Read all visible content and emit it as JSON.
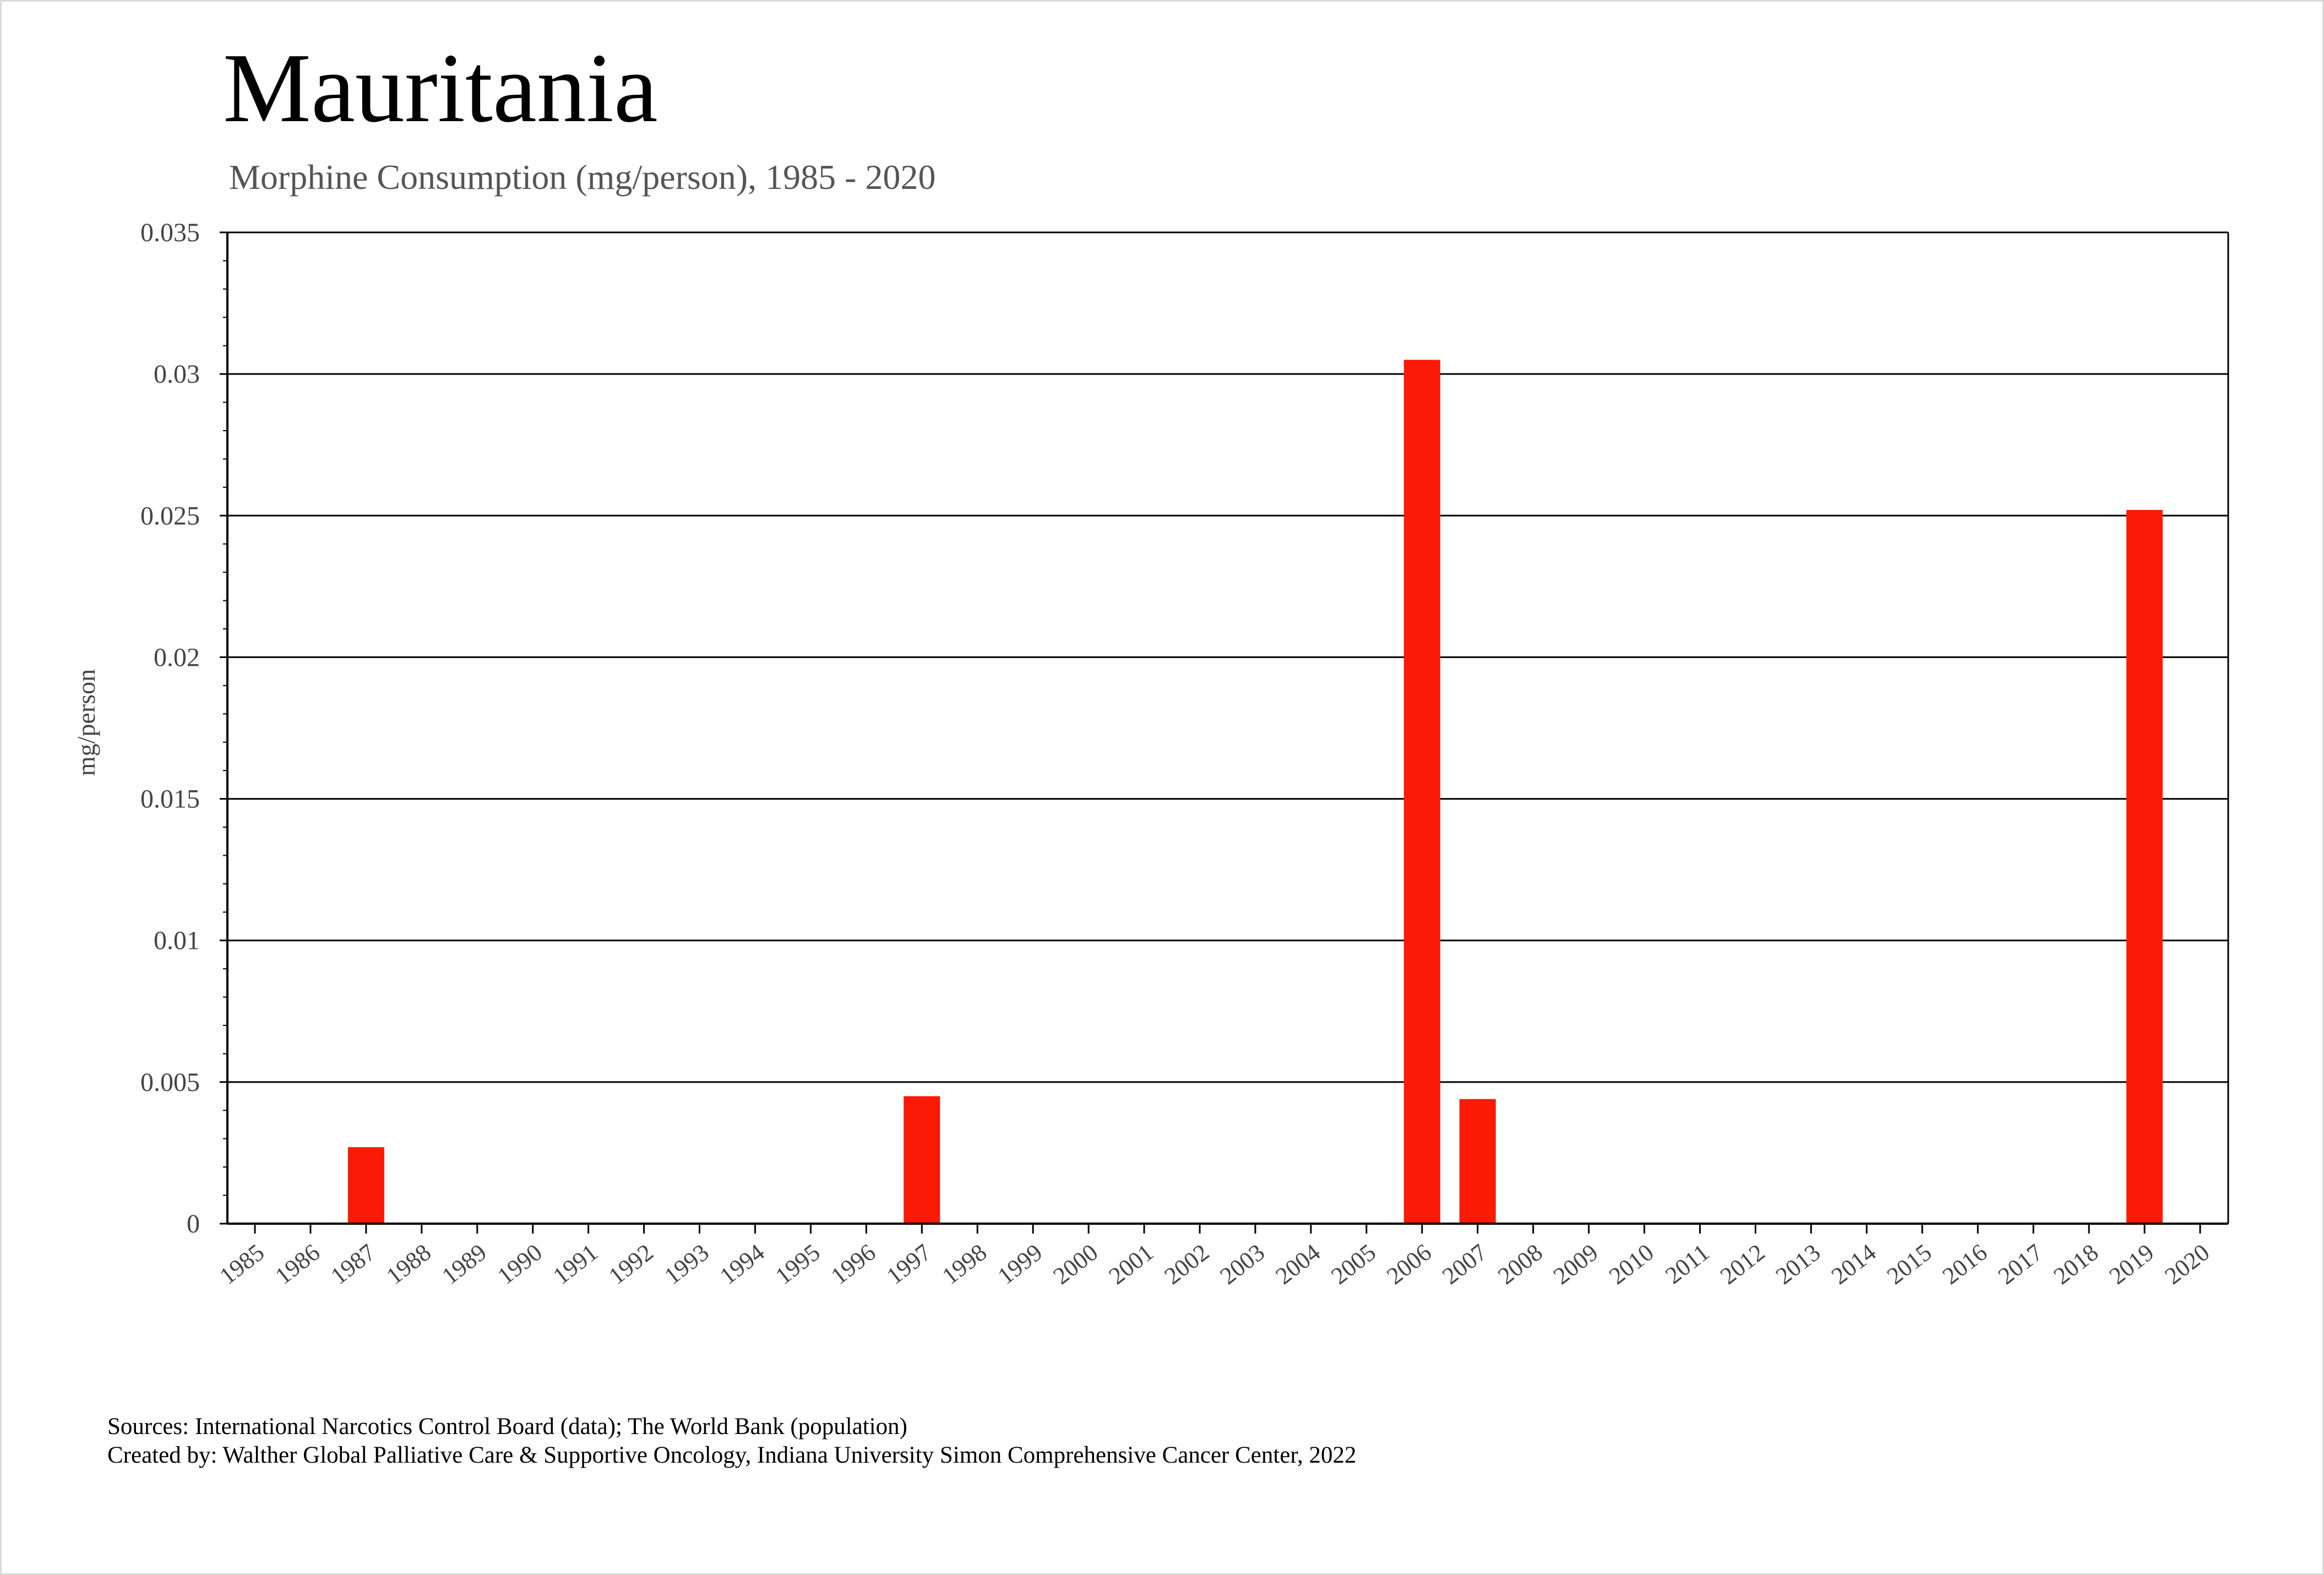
{
  "chart_data": {
    "type": "bar",
    "title": "Mauritania",
    "subtitle": "Morphine Consumption (mg/person), 1985 - 2020",
    "xlabel": "",
    "ylabel": "mg/person",
    "ylim": [
      0,
      0.035
    ],
    "y_ticks": [
      "0",
      "0.005",
      "0.01",
      "0.015",
      "0.02",
      "0.025",
      "0.03",
      "0.035"
    ],
    "grid": true,
    "categories": [
      "1985",
      "1986",
      "1987",
      "1988",
      "1989",
      "1990",
      "1991",
      "1992",
      "1993",
      "1994",
      "1995",
      "1996",
      "1997",
      "1998",
      "1999",
      "2000",
      "2001",
      "2002",
      "2003",
      "2004",
      "2005",
      "2006",
      "2007",
      "2008",
      "2009",
      "2010",
      "2011",
      "2012",
      "2013",
      "2014",
      "2015",
      "2016",
      "2017",
      "2018",
      "2019",
      "2020"
    ],
    "values": [
      0,
      0,
      0.0027,
      0,
      0,
      0,
      0,
      0,
      0,
      0,
      0,
      0,
      0.0045,
      0,
      0,
      0,
      0,
      0,
      0,
      0,
      0,
      0.0305,
      0.0044,
      0,
      0,
      0,
      0,
      0,
      0,
      0,
      0,
      0,
      0,
      0,
      0.0252,
      0
    ],
    "bar_color": "#fa1a05"
  },
  "footer": {
    "sources": "Sources: International Narcotics Control Board (data); The World Bank (population)",
    "created_by": "Created by: Walther  Global Palliative Care & Supportive Oncology, Indiana University Simon Comprehensive Cancer Center, 2022"
  }
}
